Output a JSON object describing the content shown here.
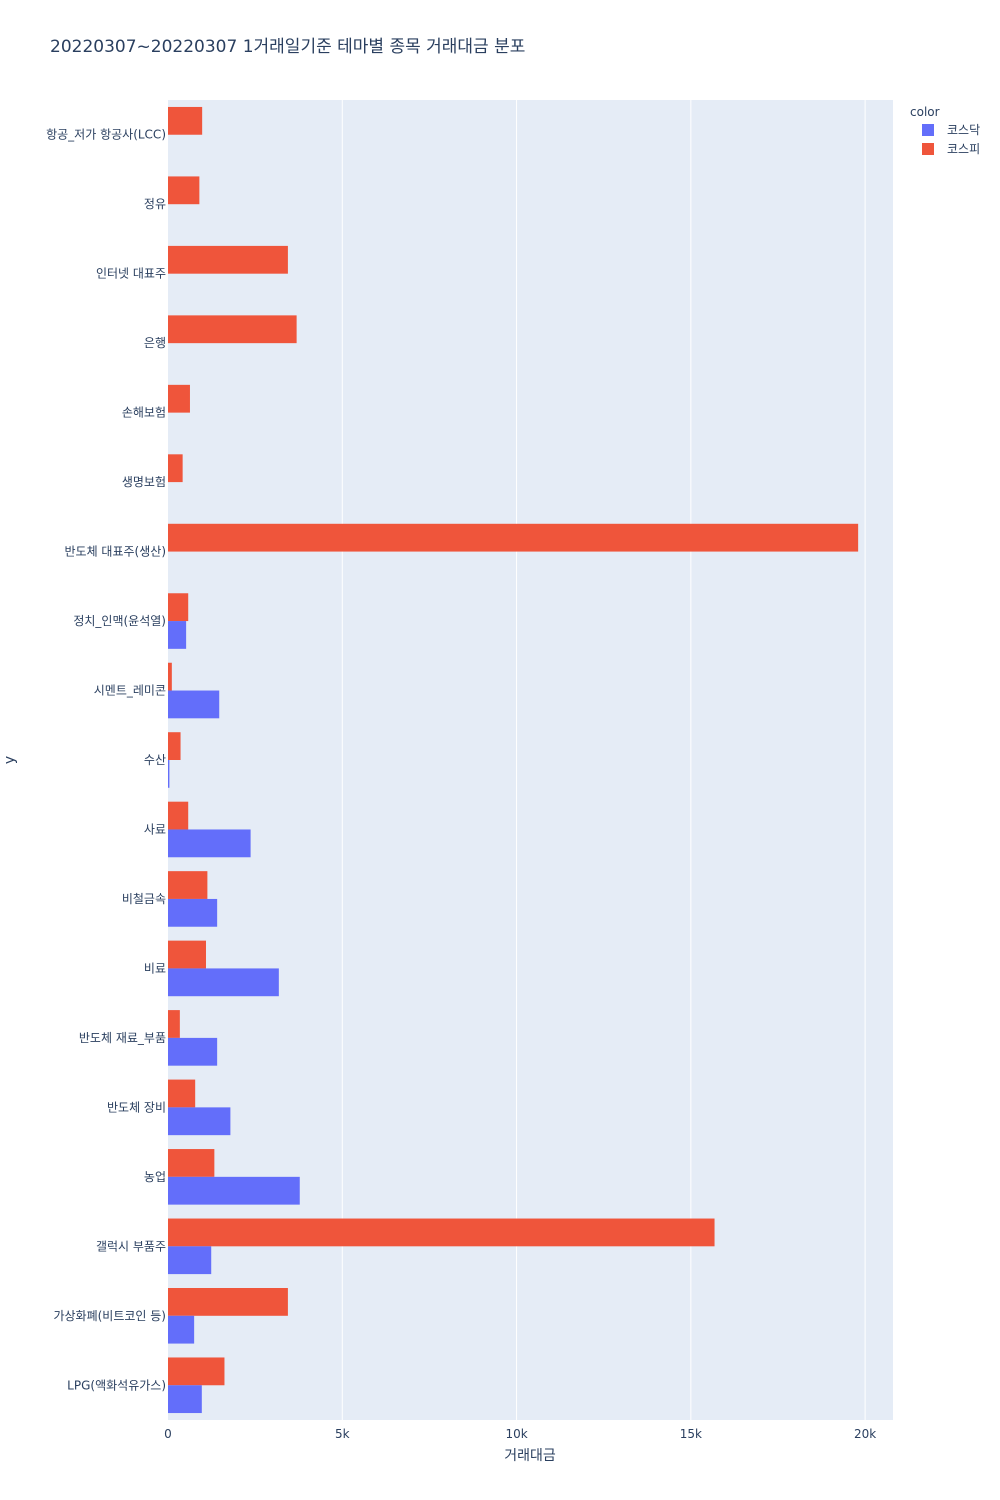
{
  "chart_data": {
    "type": "bar",
    "orientation": "horizontal",
    "barmode": "group",
    "title": "20220307~20220307 1거래일기준 테마별 종목 거래대금 분포",
    "xlabel": "거래대금",
    "ylabel": "y",
    "xlim": [
      0,
      20800
    ],
    "xticks": [
      {
        "value": 0,
        "label": "0"
      },
      {
        "value": 5000,
        "label": "5k"
      },
      {
        "value": 10000,
        "label": "10k"
      },
      {
        "value": 15000,
        "label": "15k"
      },
      {
        "value": 20000,
        "label": "20k"
      }
    ],
    "grid": true,
    "legend_title": "color",
    "legend_position": "top-right",
    "categories": [
      "항공_저가 항공사(LCC)",
      "정유",
      "인터넷 대표주",
      "은행",
      "손해보험",
      "생명보험",
      "반도체 대표주(생산)",
      "정치_인맥(윤석열)",
      "시멘트_레미콘",
      "수산",
      "사료",
      "비철금속",
      "비료",
      "반도체 재료_부품",
      "반도체 장비",
      "농업",
      "갤럭시 부품주",
      "가상화폐(비트코인 등)",
      "LPG(액화석유가스)"
    ],
    "series": [
      {
        "name": "코스닥",
        "color": "#636efa",
        "values": [
          0,
          0,
          0,
          0,
          0,
          0,
          0,
          520,
          1470,
          40,
          2370,
          1410,
          3180,
          1410,
          1790,
          3780,
          1240,
          750,
          970
        ]
      },
      {
        "name": "코스피",
        "color": "#ef553b",
        "values": [
          980,
          900,
          3440,
          3690,
          630,
          420,
          19800,
          580,
          110,
          360,
          580,
          1130,
          1090,
          340,
          780,
          1330,
          15680,
          3440,
          1620
        ]
      }
    ]
  }
}
